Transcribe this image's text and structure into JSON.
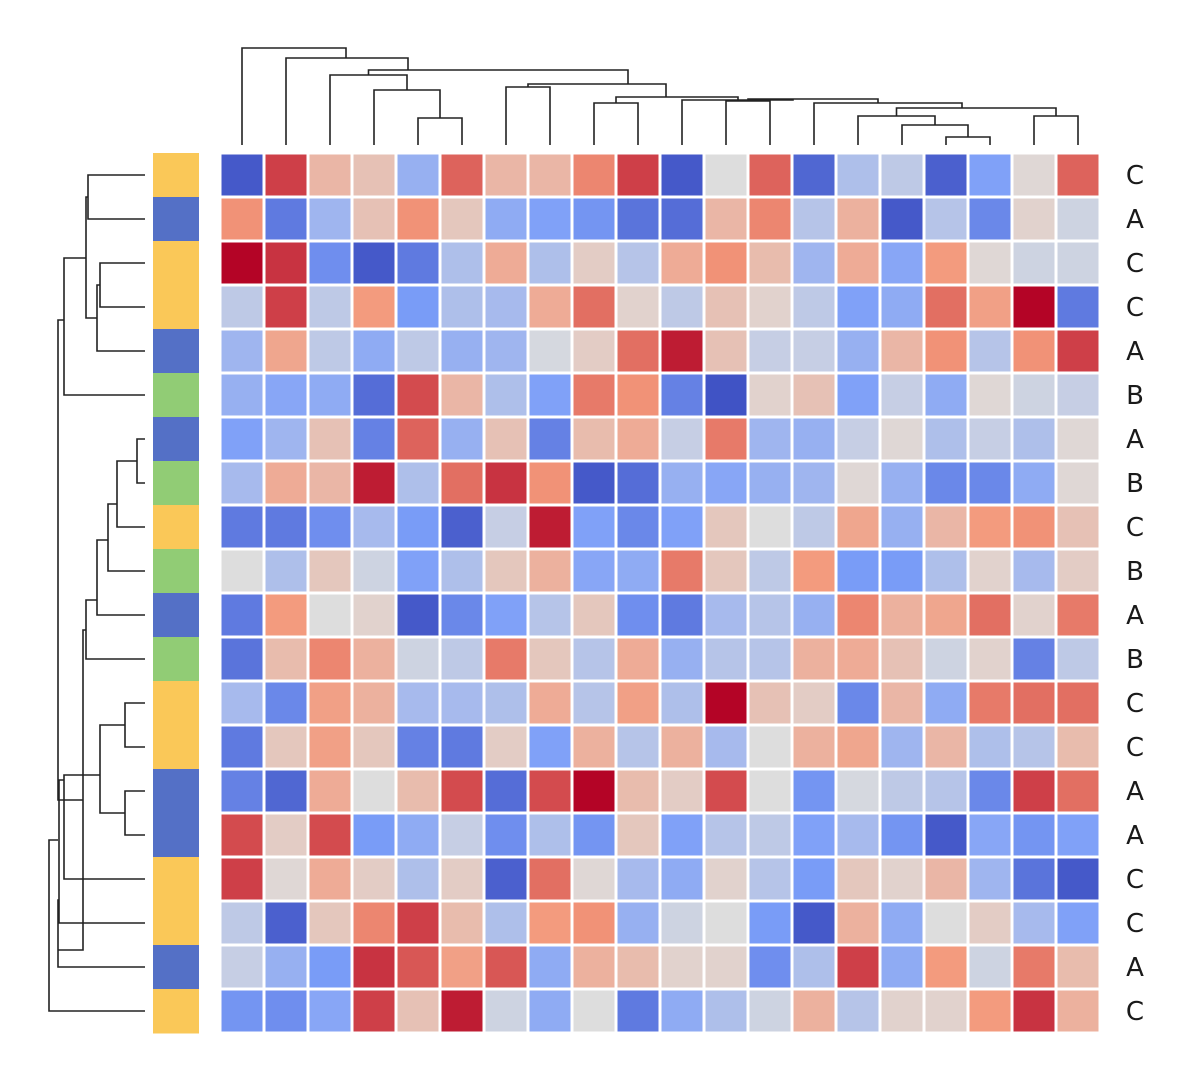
{
  "chart_data": {
    "type": "heatmap",
    "title": "",
    "xlabel": "",
    "ylabel": "",
    "colormap": "coolwarm",
    "vmin": -2.5,
    "vmax": 2.5,
    "row_labels": [
      "C",
      "A",
      "C",
      "C",
      "A",
      "B",
      "A",
      "B",
      "C",
      "B",
      "A",
      "B",
      "C",
      "C",
      "A",
      "A",
      "C",
      "C",
      "A",
      "C"
    ],
    "group_colors": {
      "A": "#5470c6",
      "B": "#91cc75",
      "C": "#fac858"
    },
    "values": [
      [
        -2.3,
        2.0,
        0.7,
        0.5,
        -0.9,
        1.7,
        0.7,
        0.7,
        1.4,
        2.0,
        -2.3,
        0.0,
        1.7,
        -2.1,
        -0.6,
        -0.4,
        -2.2,
        -1.2,
        0.1,
        1.7
      ],
      [
        1.3,
        -1.8,
        -0.8,
        0.5,
        1.3,
        0.4,
        -1.0,
        -1.2,
        -1.4,
        -1.9,
        -2.0,
        0.7,
        1.4,
        -0.5,
        0.8,
        -2.3,
        -0.5,
        -1.6,
        0.2,
        -0.2
      ],
      [
        2.5,
        2.1,
        -1.5,
        -2.3,
        -1.8,
        -0.6,
        0.9,
        -0.6,
        0.3,
        -0.5,
        0.9,
        1.3,
        0.6,
        -0.8,
        0.9,
        -1.1,
        1.2,
        0.1,
        -0.2,
        -0.2
      ],
      [
        -0.4,
        2.0,
        -0.4,
        1.2,
        -1.3,
        -0.6,
        -0.7,
        0.9,
        1.6,
        0.2,
        -0.4,
        0.5,
        0.2,
        -0.4,
        -1.2,
        -1.0,
        1.6,
        1.1,
        2.5,
        -1.8
      ],
      [
        -0.8,
        1.0,
        -0.4,
        -1.0,
        -0.4,
        -0.9,
        -0.8,
        -0.1,
        0.3,
        1.6,
        2.3,
        0.5,
        -0.3,
        -0.3,
        -0.9,
        0.7,
        1.3,
        -0.5,
        1.3,
        2.0
      ],
      [
        -0.9,
        -1.1,
        -1.0,
        -2.0,
        1.9,
        0.7,
        -0.6,
        -1.2,
        1.5,
        1.3,
        -1.7,
        -2.4,
        0.2,
        0.5,
        -1.2,
        -0.3,
        -1.0,
        0.1,
        -0.2,
        -0.3
      ],
      [
        -1.2,
        -0.8,
        0.5,
        -1.7,
        1.7,
        -0.9,
        0.5,
        -1.7,
        0.6,
        0.9,
        -0.3,
        1.5,
        -0.8,
        -0.9,
        -0.3,
        0.1,
        -0.6,
        -0.3,
        -0.6,
        0.1
      ],
      [
        -0.7,
        0.9,
        0.7,
        2.3,
        -0.6,
        1.6,
        2.1,
        1.3,
        -2.3,
        -2.0,
        -0.9,
        -1.1,
        -0.9,
        -0.8,
        0.1,
        -0.9,
        -1.6,
        -1.6,
        -1.0,
        0.1
      ],
      [
        -1.8,
        -1.8,
        -1.5,
        -0.7,
        -1.3,
        -2.2,
        -0.3,
        2.3,
        -1.2,
        -1.6,
        -1.2,
        0.4,
        0.0,
        -0.4,
        1.0,
        -0.9,
        0.7,
        1.2,
        1.3,
        0.5
      ],
      [
        0.0,
        -0.6,
        0.4,
        -0.2,
        -1.2,
        -0.6,
        0.4,
        0.8,
        -1.1,
        -1.0,
        1.5,
        0.4,
        -0.4,
        1.2,
        -1.3,
        -1.3,
        -0.6,
        0.2,
        -0.7,
        0.3
      ],
      [
        -1.8,
        1.2,
        0.0,
        0.2,
        -2.3,
        -1.6,
        -1.2,
        -0.5,
        0.4,
        -1.5,
        -1.8,
        -0.7,
        -0.5,
        -0.9,
        1.4,
        0.8,
        1.0,
        1.6,
        0.2,
        1.5
      ],
      [
        -1.9,
        0.6,
        1.4,
        0.8,
        -0.2,
        -0.4,
        1.5,
        0.4,
        -0.5,
        0.9,
        -0.9,
        -0.5,
        -0.5,
        0.8,
        0.9,
        0.5,
        -0.2,
        0.2,
        -1.7,
        -0.4
      ],
      [
        -0.7,
        -1.6,
        1.1,
        0.8,
        -0.7,
        -0.7,
        -0.6,
        0.9,
        -0.5,
        1.1,
        -0.6,
        2.5,
        0.5,
        0.3,
        -1.6,
        0.7,
        -1.0,
        1.5,
        1.6,
        1.6
      ],
      [
        -1.8,
        0.4,
        1.1,
        0.4,
        -1.7,
        -1.8,
        0.3,
        -1.2,
        0.8,
        -0.5,
        0.8,
        -0.7,
        0.0,
        0.8,
        1.0,
        -0.8,
        0.7,
        -0.6,
        -0.5,
        0.6
      ],
      [
        -1.7,
        -2.1,
        0.9,
        0.0,
        0.6,
        1.9,
        -2.0,
        1.9,
        2.5,
        0.6,
        0.3,
        1.9,
        0.0,
        -1.4,
        -0.1,
        -0.4,
        -0.5,
        -1.6,
        2.0,
        1.6
      ],
      [
        1.9,
        0.3,
        1.9,
        -1.3,
        -1.0,
        -0.3,
        -1.5,
        -0.6,
        -1.4,
        0.4,
        -1.2,
        -0.5,
        -0.4,
        -1.2,
        -0.7,
        -1.4,
        -2.3,
        -1.1,
        -1.4,
        -1.2
      ],
      [
        2.0,
        0.1,
        0.9,
        0.3,
        -0.6,
        0.3,
        -2.2,
        1.6,
        0.1,
        -0.7,
        -1.0,
        0.2,
        -0.5,
        -1.3,
        0.4,
        0.2,
        0.7,
        -0.8,
        -1.9,
        -2.3
      ],
      [
        -0.4,
        -2.2,
        0.4,
        1.4,
        2.0,
        0.6,
        -0.6,
        1.2,
        1.3,
        -0.9,
        -0.2,
        0.0,
        -1.3,
        -2.3,
        0.8,
        -1.0,
        0.0,
        0.3,
        -0.7,
        -1.2
      ],
      [
        -0.3,
        -0.9,
        -1.3,
        2.1,
        1.8,
        1.1,
        1.8,
        -1.0,
        0.8,
        0.6,
        0.2,
        0.2,
        -1.5,
        -0.6,
        2.0,
        -1.0,
        1.2,
        -0.2,
        1.5,
        0.6
      ],
      [
        -1.4,
        -1.5,
        -1.1,
        2.0,
        0.5,
        2.3,
        -0.2,
        -1.0,
        0.0,
        -1.8,
        -1.0,
        -0.6,
        -0.2,
        0.8,
        -0.5,
        0.2,
        0.2,
        1.2,
        2.1,
        0.8
      ]
    ]
  }
}
